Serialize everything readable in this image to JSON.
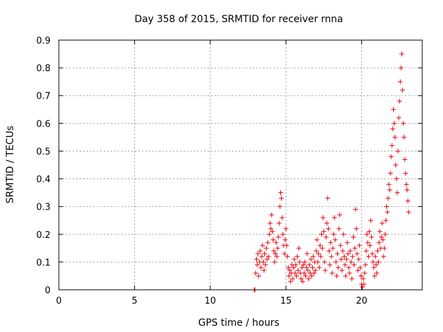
{
  "chart_data": {
    "type": "scatter",
    "title": "Day 358 of 2015, SRMTID for receiver rnna",
    "xlabel": "GPS time / hours",
    "ylabel": "SRMTID / TECUs",
    "xlim": [
      0,
      24
    ],
    "ylim": [
      0,
      0.9
    ],
    "xticks": [
      0,
      5,
      10,
      15,
      20
    ],
    "xtick_labels": [
      "0",
      "5",
      "10",
      "15",
      "20"
    ],
    "yticks": [
      0,
      0.1,
      0.2,
      0.3,
      0.4,
      0.5,
      0.6,
      0.7,
      0.8,
      0.9
    ],
    "ytick_labels": [
      "0",
      "0.1",
      "0.2",
      "0.3",
      "0.4",
      "0.5",
      "0.6",
      "0.7",
      "0.8",
      "0.9"
    ],
    "grid": true,
    "marker": "+",
    "color": "#e8000b",
    "series": [
      {
        "name": "SRMTID",
        "points": [
          [
            12.9,
            0.0
          ],
          [
            12.95,
            0.0
          ],
          [
            13.0,
            0.06
          ],
          [
            13.05,
            0.11
          ],
          [
            13.1,
            0.09
          ],
          [
            13.15,
            0.13
          ],
          [
            13.2,
            0.05
          ],
          [
            13.25,
            0.1
          ],
          [
            13.3,
            0.14
          ],
          [
            13.35,
            0.08
          ],
          [
            13.4,
            0.12
          ],
          [
            13.45,
            0.16
          ],
          [
            13.5,
            0.1
          ],
          [
            13.55,
            0.07
          ],
          [
            13.6,
            0.13
          ],
          [
            13.65,
            0.09
          ],
          [
            13.7,
            0.15
          ],
          [
            13.75,
            0.11
          ],
          [
            13.8,
            0.17
          ],
          [
            13.85,
            0.12
          ],
          [
            13.9,
            0.2
          ],
          [
            13.95,
            0.24
          ],
          [
            14.0,
            0.22
          ],
          [
            14.05,
            0.27
          ],
          [
            14.1,
            0.21
          ],
          [
            14.15,
            0.18
          ],
          [
            14.2,
            0.14
          ],
          [
            14.25,
            0.1
          ],
          [
            14.3,
            0.13
          ],
          [
            14.35,
            0.17
          ],
          [
            14.4,
            0.12
          ],
          [
            14.45,
            0.15
          ],
          [
            14.5,
            0.19
          ],
          [
            14.55,
            0.24
          ],
          [
            14.6,
            0.3
          ],
          [
            14.65,
            0.35
          ],
          [
            14.7,
            0.33
          ],
          [
            14.75,
            0.26
          ],
          [
            14.8,
            0.2
          ],
          [
            14.85,
            0.16
          ],
          [
            14.9,
            0.13
          ],
          [
            14.95,
            0.18
          ],
          [
            15.0,
            0.22
          ],
          [
            15.05,
            0.16
          ],
          [
            15.1,
            0.12
          ],
          [
            15.15,
            0.08
          ],
          [
            15.2,
            0.05
          ],
          [
            15.25,
            0.07
          ],
          [
            15.3,
            0.03
          ],
          [
            15.35,
            0.06
          ],
          [
            15.4,
            0.09
          ],
          [
            15.45,
            0.04
          ],
          [
            15.5,
            0.08
          ],
          [
            15.55,
            0.11
          ],
          [
            15.6,
            0.06
          ],
          [
            15.65,
            0.09
          ],
          [
            15.7,
            0.05
          ],
          [
            15.75,
            0.12
          ],
          [
            15.8,
            0.07
          ],
          [
            15.85,
            0.15
          ],
          [
            15.9,
            0.1
          ],
          [
            15.95,
            0.06
          ],
          [
            16.0,
            0.04
          ],
          [
            16.05,
            0.08
          ],
          [
            16.1,
            0.03
          ],
          [
            16.15,
            0.09
          ],
          [
            16.2,
            0.06
          ],
          [
            16.25,
            0.1
          ],
          [
            16.3,
            0.05
          ],
          [
            16.35,
            0.08
          ],
          [
            16.4,
            0.13
          ],
          [
            16.45,
            0.07
          ],
          [
            16.5,
            0.04
          ],
          [
            16.55,
            0.09
          ],
          [
            16.6,
            0.06
          ],
          [
            16.65,
            0.11
          ],
          [
            16.7,
            0.05
          ],
          [
            16.75,
            0.08
          ],
          [
            16.8,
            0.12
          ],
          [
            16.85,
            0.06
          ],
          [
            16.9,
            0.1
          ],
          [
            16.95,
            0.07
          ],
          [
            17.0,
            0.14
          ],
          [
            17.05,
            0.18
          ],
          [
            17.1,
            0.1
          ],
          [
            17.15,
            0.13
          ],
          [
            17.2,
            0.08
          ],
          [
            17.25,
            0.16
          ],
          [
            17.3,
            0.12
          ],
          [
            17.35,
            0.2
          ],
          [
            17.4,
            0.15
          ],
          [
            17.45,
            0.26
          ],
          [
            17.5,
            0.21
          ],
          [
            17.55,
            0.1
          ],
          [
            17.6,
            0.07
          ],
          [
            17.65,
            0.19
          ],
          [
            17.7,
            0.24
          ],
          [
            17.75,
            0.33
          ],
          [
            17.8,
            0.22
          ],
          [
            17.85,
            0.14
          ],
          [
            17.9,
            0.09
          ],
          [
            17.95,
            0.17
          ],
          [
            18.0,
            0.12
          ],
          [
            18.05,
            0.06
          ],
          [
            18.1,
            0.15
          ],
          [
            18.15,
            0.2
          ],
          [
            18.2,
            0.26
          ],
          [
            18.25,
            0.18
          ],
          [
            18.3,
            0.1
          ],
          [
            18.35,
            0.05
          ],
          [
            18.4,
            0.13
          ],
          [
            18.45,
            0.08
          ],
          [
            18.5,
            0.22
          ],
          [
            18.55,
            0.27
          ],
          [
            18.6,
            0.16
          ],
          [
            18.65,
            0.11
          ],
          [
            18.7,
            0.07
          ],
          [
            18.75,
            0.14
          ],
          [
            18.8,
            0.2
          ],
          [
            18.85,
            0.12
          ],
          [
            18.9,
            0.09
          ],
          [
            18.95,
            0.05
          ],
          [
            19.0,
            0.11
          ],
          [
            19.05,
            0.17
          ],
          [
            19.1,
            0.13
          ],
          [
            19.15,
            0.08
          ],
          [
            19.2,
            0.06
          ],
          [
            19.25,
            0.14
          ],
          [
            19.3,
            0.1
          ],
          [
            19.35,
            0.04
          ],
          [
            19.4,
            0.12
          ],
          [
            19.45,
            0.19
          ],
          [
            19.5,
            0.09
          ],
          [
            19.55,
            0.15
          ],
          [
            19.6,
            0.29
          ],
          [
            19.65,
            0.22
          ],
          [
            19.7,
            0.13
          ],
          [
            19.75,
            0.07
          ],
          [
            19.8,
            0.11
          ],
          [
            19.85,
            0.16
          ],
          [
            19.9,
            0.08
          ],
          [
            19.95,
            0.05
          ],
          [
            20.0,
            0.02
          ],
          [
            20.05,
            0.01
          ],
          [
            20.1,
            0.04
          ],
          [
            20.15,
            0.02
          ],
          [
            20.2,
            0.06
          ],
          [
            20.25,
            0.09
          ],
          [
            20.3,
            0.14
          ],
          [
            20.35,
            0.2
          ],
          [
            20.4,
            0.17
          ],
          [
            20.45,
            0.12
          ],
          [
            20.5,
            0.21
          ],
          [
            20.55,
            0.16
          ],
          [
            20.6,
            0.25
          ],
          [
            20.65,
            0.19
          ],
          [
            20.7,
            0.13
          ],
          [
            20.75,
            0.1
          ],
          [
            20.8,
            0.08
          ],
          [
            20.85,
            0.05
          ],
          [
            20.9,
            0.12
          ],
          [
            20.95,
            0.09
          ],
          [
            21.0,
            0.06
          ],
          [
            21.05,
            0.14
          ],
          [
            21.1,
            0.1
          ],
          [
            21.15,
            0.17
          ],
          [
            21.2,
            0.21
          ],
          [
            21.25,
            0.15
          ],
          [
            21.3,
            0.19
          ],
          [
            21.35,
            0.24
          ],
          [
            21.4,
            0.18
          ],
          [
            21.45,
            0.12
          ],
          [
            21.5,
            0.15
          ],
          [
            21.55,
            0.2
          ],
          [
            21.6,
            0.25
          ],
          [
            21.65,
            0.3
          ],
          [
            21.7,
            0.28
          ],
          [
            21.75,
            0.33
          ],
          [
            21.8,
            0.38
          ],
          [
            21.85,
            0.36
          ],
          [
            21.9,
            0.42
          ],
          [
            21.95,
            0.48
          ],
          [
            22.0,
            0.52
          ],
          [
            22.05,
            0.58
          ],
          [
            22.1,
            0.65
          ],
          [
            22.15,
            0.6
          ],
          [
            22.2,
            0.55
          ],
          [
            22.25,
            0.45
          ],
          [
            22.3,
            0.4
          ],
          [
            22.35,
            0.35
          ],
          [
            22.4,
            0.5
          ],
          [
            22.45,
            0.62
          ],
          [
            22.5,
            0.68
          ],
          [
            22.55,
            0.75
          ],
          [
            22.6,
            0.8
          ],
          [
            22.65,
            0.85
          ],
          [
            22.7,
            0.72
          ],
          [
            22.75,
            0.6
          ],
          [
            22.8,
            0.55
          ],
          [
            22.85,
            0.47
          ],
          [
            22.9,
            0.42
          ],
          [
            22.95,
            0.38
          ],
          [
            23.0,
            0.36
          ],
          [
            23.05,
            0.32
          ],
          [
            23.1,
            0.28
          ]
        ]
      }
    ]
  }
}
